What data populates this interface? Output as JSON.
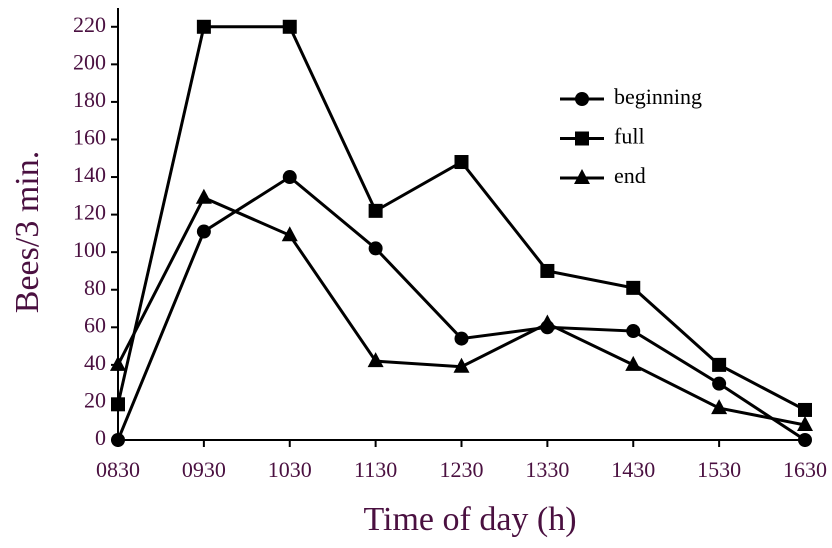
{
  "chart_data": {
    "type": "line",
    "x_label": "Time of day (h)",
    "y_label": "Bees/3 min.",
    "categories": [
      "0830",
      "0930",
      "1030",
      "1130",
      "1230",
      "1330",
      "1430",
      "1530",
      "1630"
    ],
    "series": [
      {
        "name": "beginning",
        "color": "#000000",
        "marker": "circle",
        "values": [
          0,
          111,
          140,
          102,
          54,
          60,
          58,
          30,
          0
        ]
      },
      {
        "name": "full",
        "color": "#000000",
        "marker": "square",
        "values": [
          19,
          220,
          220,
          122,
          148,
          90,
          81,
          40,
          16
        ]
      },
      {
        "name": "end",
        "color": "#000000",
        "marker": "triangle",
        "values": [
          40,
          129,
          109,
          42,
          39,
          62,
          40,
          17,
          8
        ]
      }
    ],
    "ylim": [
      0,
      230
    ],
    "yticks": [
      0,
      20,
      40,
      60,
      80,
      100,
      120,
      140,
      160,
      180,
      200,
      220
    ],
    "legend": "top-right",
    "grid": false
  }
}
